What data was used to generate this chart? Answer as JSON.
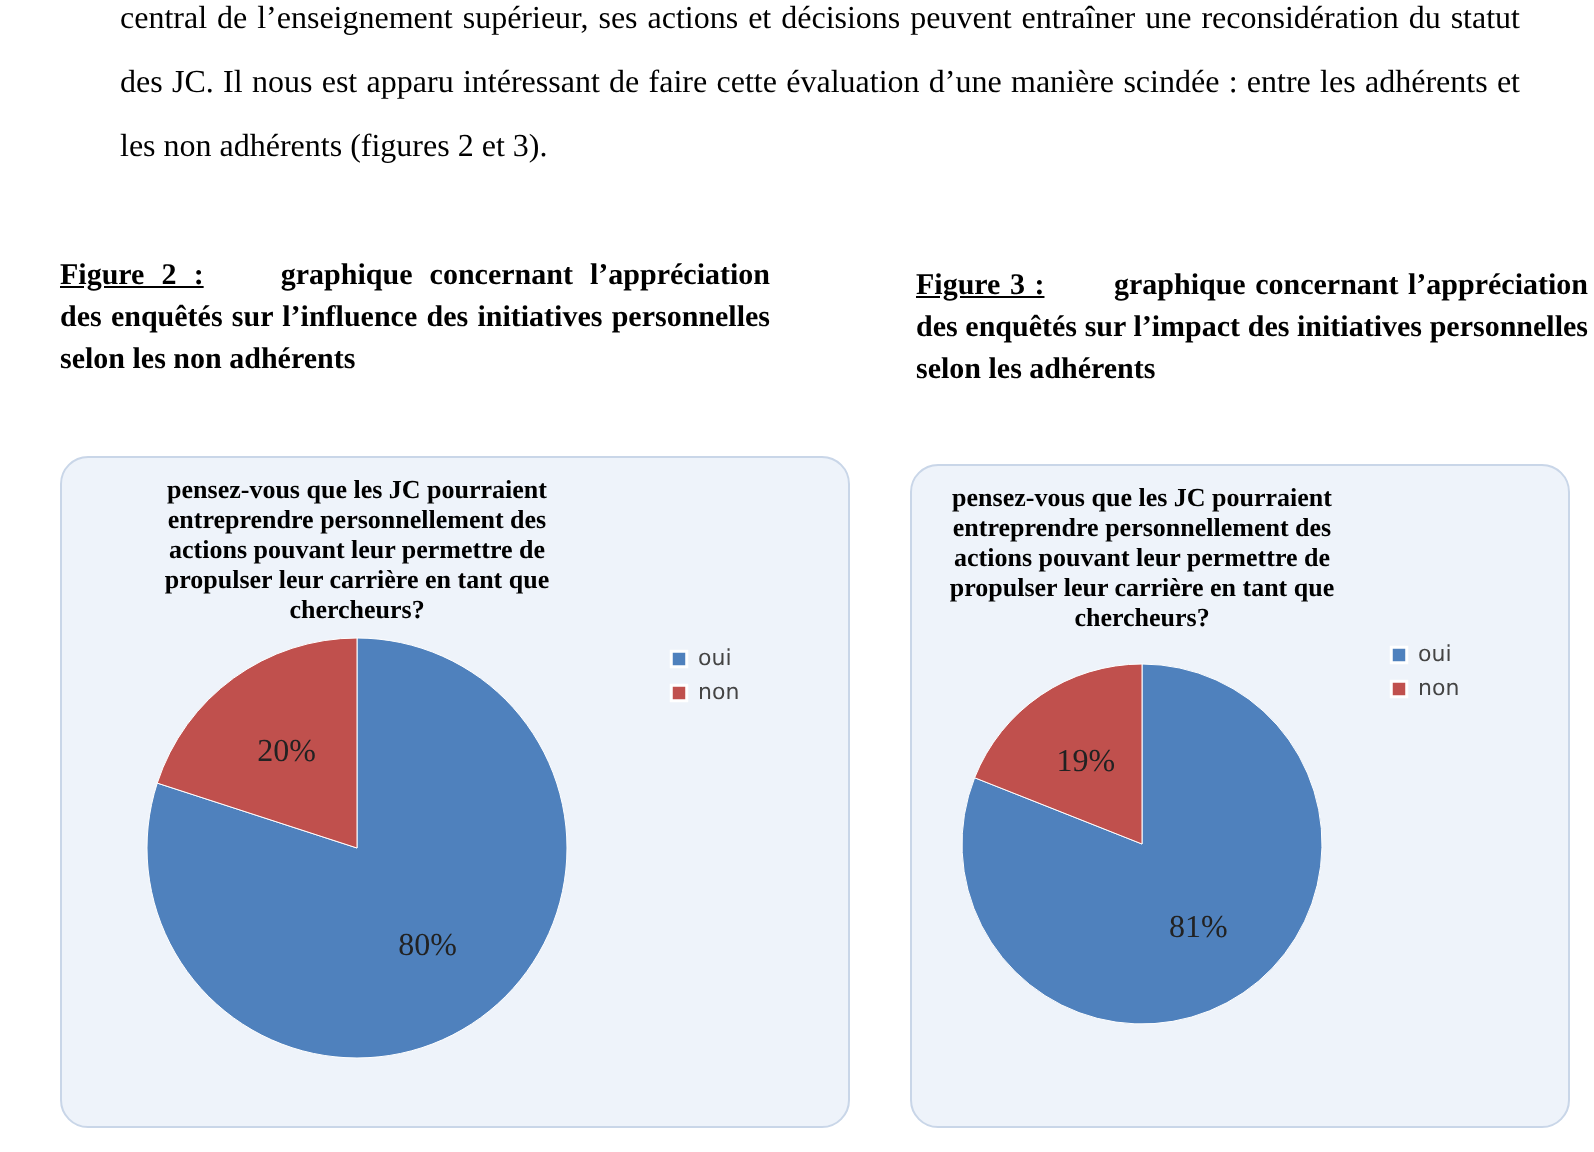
{
  "chart_data": [
    {
      "type": "pie",
      "title": "pensez-vous que les JC pourraient entreprendre personnellement des actions pouvant leur permettre de propulser leur carrière en tant que chercheurs?",
      "annotations": [
        "central de l’enseignement supérieur, ses actions et décisions peuvent entraîner une reconsidération du statut des JC. Il nous est apparu intéressant de faire cette évaluation d’une manière scindée : entre les adhérents et les non adhérents (figures 2 et 3).",
        "Figure 2 :",
        "graphique concernant l’appréciation des enquêtés sur l’influence des initiatives personnelles selon les non adhérents"
      ],
      "categories": [
        "oui",
        "non"
      ],
      "values": [
        80,
        20
      ],
      "value_labels": [
        "80%",
        "20%"
      ],
      "colors": [
        "#4f81bd",
        "#c0504d"
      ],
      "legend": "right"
    },
    {
      "type": "pie",
      "title": "pensez-vous que les JC pourraient entreprendre personnellement des actions pouvant leur permettre de propulser leur carrière en tant que chercheurs?",
      "annotations": [
        "Figure 3 :",
        "graphique concernant l’appréciation des enquêtés sur l’impact des initiatives personnelles selon les adhérents"
      ],
      "categories": [
        "oui",
        "non"
      ],
      "values": [
        81,
        19
      ],
      "value_labels": [
        "81%",
        "19%"
      ],
      "colors": [
        "#4f81bd",
        "#c0504d"
      ],
      "legend": "right"
    }
  ]
}
